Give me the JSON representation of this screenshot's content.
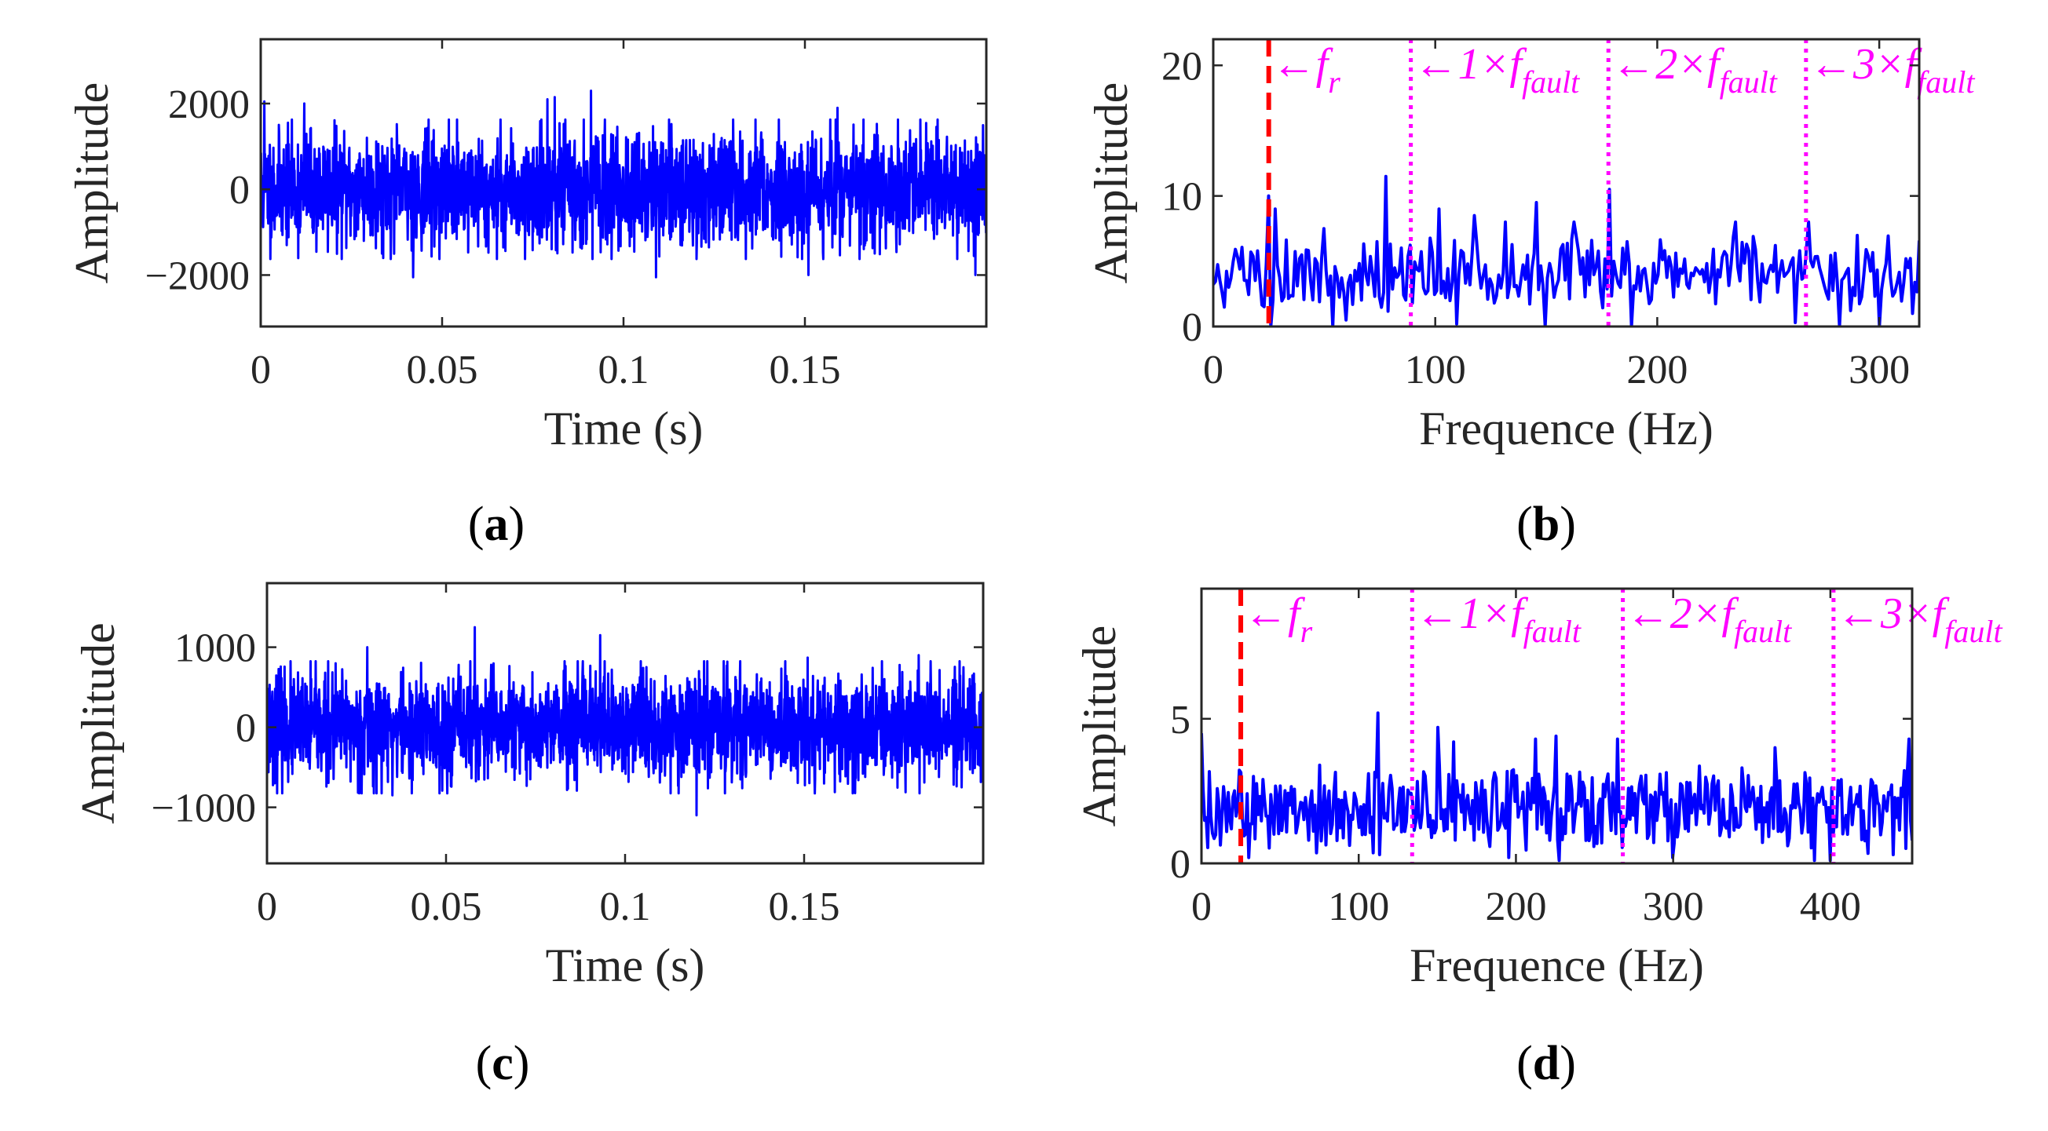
{
  "chart_data": [
    {
      "id": "a",
      "panel_label": "a",
      "type": "line",
      "xlabel": "Time (s)",
      "ylabel": "Amplitude",
      "xlim": [
        0,
        0.2
      ],
      "ylim": [
        -3200,
        3500
      ],
      "xticks": [
        {
          "value": 0,
          "label": "0"
        },
        {
          "value": 0.05,
          "label": "0.05"
        },
        {
          "value": 0.1,
          "label": "0.1"
        },
        {
          "value": 0.15,
          "label": "0.15"
        }
      ],
      "yticks": [
        {
          "value": -2000,
          "label": "−2000"
        },
        {
          "value": 0,
          "label": "0"
        },
        {
          "value": 2000,
          "label": "2000"
        }
      ],
      "color": "#0000ff",
      "signal": {
        "kind": "noise",
        "n": 2400,
        "amplitude": 650,
        "seed": 11,
        "spikes": [
          [
            0.001,
            2050
          ],
          [
            0.012,
            2000
          ],
          [
            0.042,
            -2050
          ],
          [
            0.079,
            2100
          ],
          [
            0.081,
            2150
          ],
          [
            0.091,
            2300
          ],
          [
            0.109,
            -2050
          ],
          [
            0.151,
            -2000
          ],
          [
            0.159,
            1900
          ],
          [
            0.197,
            -2000
          ]
        ]
      },
      "markers": []
    },
    {
      "id": "b",
      "panel_label": "b",
      "type": "line",
      "xlabel": "Frequence (Hz)",
      "ylabel": "Amplitude",
      "xlim": [
        0,
        318
      ],
      "ylim": [
        0,
        22
      ],
      "xticks": [
        {
          "value": 0,
          "label": "0"
        },
        {
          "value": 100,
          "label": "100"
        },
        {
          "value": 200,
          "label": "200"
        },
        {
          "value": 300,
          "label": "300"
        }
      ],
      "yticks": [
        {
          "value": 0,
          "label": "0"
        },
        {
          "value": 10,
          "label": "10"
        },
        {
          "value": 20,
          "label": "20"
        }
      ],
      "color": "#0000ff",
      "signal": {
        "kind": "spectrum",
        "n": 320,
        "base": 4,
        "spread": 2.8,
        "seed": 5,
        "peaks": [
          [
            25,
            10
          ],
          [
            28,
            9
          ],
          [
            50,
            7.5
          ],
          [
            78,
            11.5
          ],
          [
            102,
            9
          ],
          [
            118,
            8.5
          ],
          [
            132,
            8
          ],
          [
            146,
            9.5
          ],
          [
            162,
            8
          ],
          [
            178,
            10.5
          ],
          [
            186,
            6.5
          ],
          [
            235,
            8
          ],
          [
            268,
            8
          ]
        ],
        "dips": [
          [
            26,
            0
          ],
          [
            54,
            0
          ],
          [
            60,
            0.5
          ],
          [
            110,
            0.2
          ],
          [
            150,
            0
          ],
          [
            188,
            0
          ],
          [
            262,
            0.3
          ],
          [
            282,
            0
          ],
          [
            300,
            0
          ],
          [
            315,
            1
          ]
        ]
      },
      "markers": [
        {
          "x": 25,
          "style": "dash",
          "color": "#ff0000",
          "label": "←f",
          "sub": "r"
        },
        {
          "x": 89,
          "style": "dot",
          "color": "#ff00ff",
          "label": "←1×f",
          "sub": "fault"
        },
        {
          "x": 178,
          "style": "dot",
          "color": "#ff00ff",
          "label": "←2×f",
          "sub": "fault"
        },
        {
          "x": 267,
          "style": "dot",
          "color": "#ff00ff",
          "label": "←3×f",
          "sub": "fault"
        }
      ]
    },
    {
      "id": "c",
      "panel_label": "c",
      "type": "line",
      "xlabel": "Time (s)",
      "ylabel": "Amplitude",
      "xlim": [
        0,
        0.2
      ],
      "ylim": [
        -1700,
        1800
      ],
      "xticks": [
        {
          "value": 0,
          "label": "0"
        },
        {
          "value": 0.05,
          "label": "0.05"
        },
        {
          "value": 0.1,
          "label": "0.1"
        },
        {
          "value": 0.15,
          "label": "0.15"
        }
      ],
      "yticks": [
        {
          "value": -1000,
          "label": "−1000"
        },
        {
          "value": 0,
          "label": "0"
        },
        {
          "value": 1000,
          "label": "1000"
        }
      ],
      "color": "#0000ff",
      "signal": {
        "kind": "noise",
        "n": 2400,
        "amplitude": 330,
        "seed": 23,
        "spikes": [
          [
            0.028,
            1000
          ],
          [
            0.058,
            1250
          ],
          [
            0.093,
            1150
          ],
          [
            0.12,
            -1100
          ],
          [
            0.035,
            -850
          ],
          [
            0.151,
            870
          ],
          [
            0.182,
            900
          ],
          [
            0.194,
            -750
          ]
        ]
      },
      "markers": []
    },
    {
      "id": "d",
      "panel_label": "d",
      "type": "line",
      "xlabel": "Frequence (Hz)",
      "ylabel": "Amplitude",
      "xlim": [
        0,
        452
      ],
      "ylim": [
        0,
        9.5
      ],
      "xticks": [
        {
          "value": 0,
          "label": "0"
        },
        {
          "value": 100,
          "label": "100"
        },
        {
          "value": 200,
          "label": "200"
        },
        {
          "value": 300,
          "label": "300"
        },
        {
          "value": 400,
          "label": "400"
        }
      ],
      "yticks": [
        {
          "value": 0,
          "label": "0"
        },
        {
          "value": 5,
          "label": "5"
        }
      ],
      "color": "#0000ff",
      "signal": {
        "kind": "spectrum",
        "n": 452,
        "base": 1.9,
        "spread": 1.5,
        "seed": 9,
        "peaks": [
          [
            0,
            4.5
          ],
          [
            112,
            5.2
          ],
          [
            150,
            4.7
          ],
          [
            160,
            4.2
          ],
          [
            212,
            4.3
          ],
          [
            225,
            4.4
          ],
          [
            265,
            4.3
          ],
          [
            365,
            4.0
          ],
          [
            450,
            4.3
          ]
        ],
        "dips": [
          [
            30,
            0.2
          ],
          [
            113,
            0.3
          ],
          [
            195,
            0.2
          ],
          [
            228,
            0.1
          ],
          [
            300,
            0.2
          ],
          [
            390,
            0.1
          ],
          [
            400,
            0.1
          ],
          [
            440,
            0.3
          ]
        ]
      },
      "markers": [
        {
          "x": 25,
          "style": "dash",
          "color": "#ff0000",
          "label": "←f",
          "sub": "r"
        },
        {
          "x": 134,
          "style": "dot",
          "color": "#ff00ff",
          "label": "←1×f",
          "sub": "fault"
        },
        {
          "x": 268,
          "style": "dot",
          "color": "#ff00ff",
          "label": "←2×f",
          "sub": "fault"
        },
        {
          "x": 402,
          "style": "dot",
          "color": "#ff00ff",
          "label": "←3×f",
          "sub": "fault"
        }
      ]
    }
  ]
}
